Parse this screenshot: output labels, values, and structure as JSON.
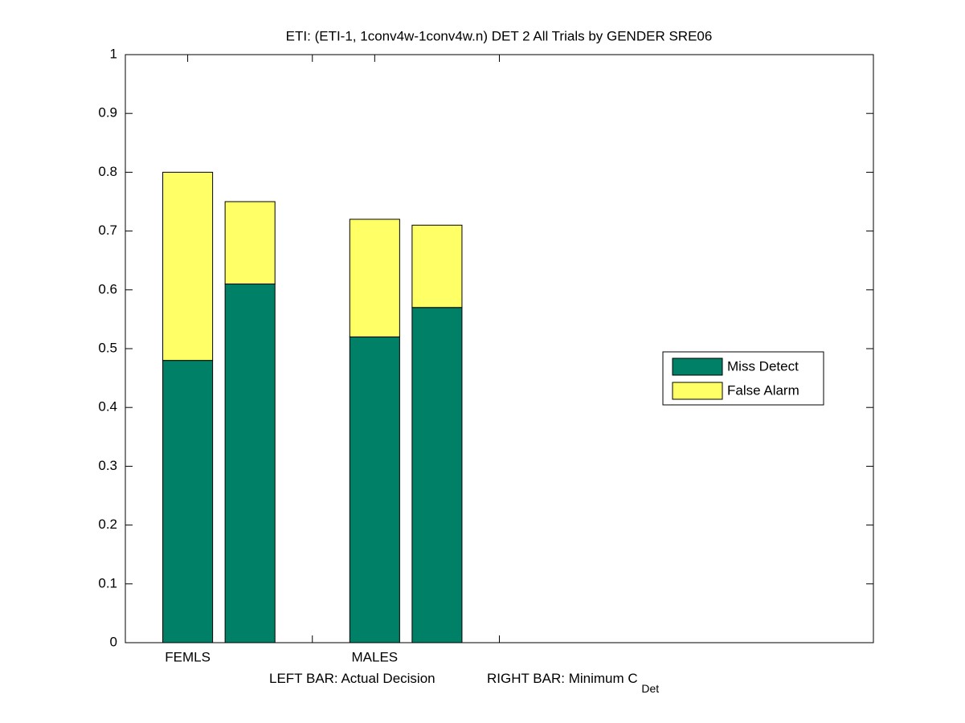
{
  "chart_data": {
    "type": "stacked_bar",
    "title": "ETI: (ETI-1, 1conv4w-1conv4w.n) DET 2 All Trials by GENDER SRE06",
    "xlabel": {
      "left": "LEFT BAR: Actual Decision",
      "right": "RIGHT BAR: Minimum C",
      "subscript": "Det"
    },
    "x": [
      1,
      2,
      4,
      5
    ],
    "series": [
      {
        "name": "Miss Detect",
        "color": "#008066",
        "values": [
          0.48,
          0.61,
          0.52,
          0.57
        ]
      },
      {
        "name": "False Alarm",
        "color": "#ffff66",
        "values": [
          0.32,
          0.14,
          0.2,
          0.14
        ]
      }
    ],
    "xlim": [
      0,
      12
    ],
    "xticks": [
      {
        "value": 1,
        "label": "FEMLS"
      },
      {
        "value": 3,
        "label": null
      },
      {
        "value": 4,
        "label": "MALES"
      },
      {
        "value": 6,
        "label": null
      }
    ],
    "ylim": [
      0,
      1
    ],
    "yticks": [
      0,
      0.1,
      0.2,
      0.3,
      0.4,
      0.5,
      0.6,
      0.7,
      0.8,
      0.9,
      1
    ],
    "legend": "east",
    "grid": false
  }
}
